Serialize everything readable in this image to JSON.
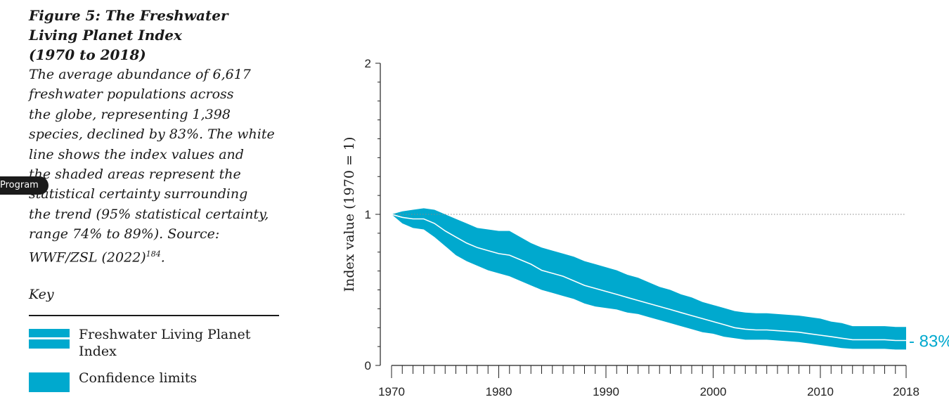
{
  "figure": {
    "title": "Figure 5: The Freshwater\nLiving Planet Index\n(1970 to 2018)",
    "description": "The average abundance of 6,617\nfreshwater populations across\nthe globe, representing 1,398\nspecies, declined by 83%. The white\nline shows the index values and\nthe shaded areas represent the\nstatistical certainty surrounding\nthe trend (95% statistical certainty,\nrange 74% to 89%). Source:\nWWF/ZSL (2022)",
    "reference": "184",
    "reference_suffix": "."
  },
  "overlay_pill": "Program",
  "key": {
    "title": "Key",
    "items": [
      {
        "label": "Freshwater Living Planet\nIndex",
        "swatch": "line"
      },
      {
        "label": "Confidence limits",
        "swatch": "band"
      }
    ]
  },
  "colors": {
    "band": "#00a9ce",
    "line": "#ffffff",
    "axis": "#222222",
    "reference": "#888888"
  },
  "chart_data": {
    "type": "area",
    "title": "",
    "xlabel": "",
    "ylabel": "Index value (1970 = 1)",
    "xlim": [
      1970,
      2018
    ],
    "ylim": [
      0,
      2
    ],
    "x_ticks": [
      1970,
      1980,
      1990,
      2000,
      2010,
      2018
    ],
    "y_ticks": [
      0,
      1,
      2
    ],
    "reference_line": 1,
    "end_label": "- 83%",
    "x": [
      1970,
      1971,
      1972,
      1973,
      1974,
      1975,
      1976,
      1977,
      1978,
      1979,
      1980,
      1981,
      1982,
      1983,
      1984,
      1985,
      1986,
      1987,
      1988,
      1989,
      1990,
      1991,
      1992,
      1993,
      1994,
      1995,
      1996,
      1997,
      1998,
      1999,
      2000,
      2001,
      2002,
      2003,
      2004,
      2005,
      2006,
      2007,
      2008,
      2009,
      2010,
      2011,
      2012,
      2013,
      2014,
      2015,
      2016,
      2017,
      2018
    ],
    "series": [
      {
        "name": "Freshwater Living Planet Index",
        "values": [
          1.0,
          0.98,
          0.97,
          0.97,
          0.94,
          0.89,
          0.85,
          0.81,
          0.78,
          0.76,
          0.74,
          0.73,
          0.7,
          0.67,
          0.63,
          0.61,
          0.59,
          0.56,
          0.53,
          0.51,
          0.49,
          0.47,
          0.45,
          0.43,
          0.41,
          0.39,
          0.37,
          0.35,
          0.33,
          0.31,
          0.29,
          0.27,
          0.25,
          0.24,
          0.235,
          0.235,
          0.23,
          0.225,
          0.22,
          0.21,
          0.2,
          0.19,
          0.18,
          0.17,
          0.17,
          0.17,
          0.17,
          0.165,
          0.165
        ]
      },
      {
        "name": "upper",
        "values": [
          1.0,
          1.02,
          1.03,
          1.04,
          1.03,
          1.0,
          0.97,
          0.94,
          0.91,
          0.9,
          0.89,
          0.89,
          0.85,
          0.81,
          0.78,
          0.76,
          0.74,
          0.72,
          0.69,
          0.67,
          0.65,
          0.63,
          0.6,
          0.58,
          0.55,
          0.52,
          0.5,
          0.47,
          0.45,
          0.42,
          0.4,
          0.38,
          0.36,
          0.35,
          0.345,
          0.345,
          0.34,
          0.335,
          0.33,
          0.32,
          0.31,
          0.29,
          0.28,
          0.26,
          0.26,
          0.26,
          0.26,
          0.255,
          0.255
        ]
      },
      {
        "name": "lower",
        "values": [
          1.0,
          0.94,
          0.91,
          0.9,
          0.85,
          0.79,
          0.73,
          0.69,
          0.66,
          0.63,
          0.61,
          0.59,
          0.56,
          0.53,
          0.5,
          0.48,
          0.46,
          0.44,
          0.41,
          0.39,
          0.38,
          0.37,
          0.35,
          0.34,
          0.32,
          0.3,
          0.28,
          0.26,
          0.24,
          0.22,
          0.21,
          0.19,
          0.18,
          0.17,
          0.17,
          0.17,
          0.165,
          0.16,
          0.155,
          0.145,
          0.135,
          0.125,
          0.115,
          0.11,
          0.11,
          0.11,
          0.11,
          0.105,
          0.105
        ]
      }
    ]
  }
}
